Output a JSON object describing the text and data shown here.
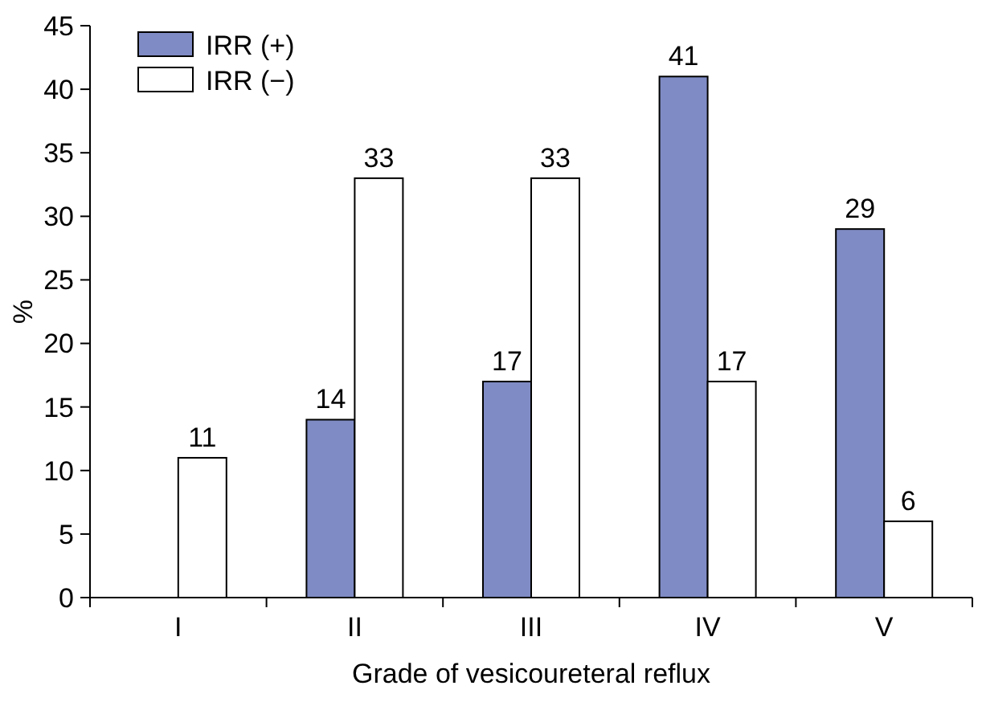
{
  "chart_data": {
    "type": "bar",
    "xlabel": "Grade of vesicoureteral reflux",
    "ylabel": "%",
    "categories": [
      "I",
      "II",
      "III",
      "IV",
      "V"
    ],
    "series": [
      {
        "name": "IRR (+)",
        "color": "#7f8bc4",
        "values": [
          null,
          14,
          17,
          41,
          29
        ]
      },
      {
        "name": "IRR (−)",
        "color": "#ffffff",
        "values": [
          11,
          33,
          33,
          17,
          6
        ]
      }
    ],
    "ylim": [
      0,
      45
    ],
    "yticks": [
      0,
      5,
      10,
      15,
      20,
      25,
      30,
      35,
      40,
      45
    ],
    "data_labels": true,
    "legend": "top left",
    "grid": false
  }
}
